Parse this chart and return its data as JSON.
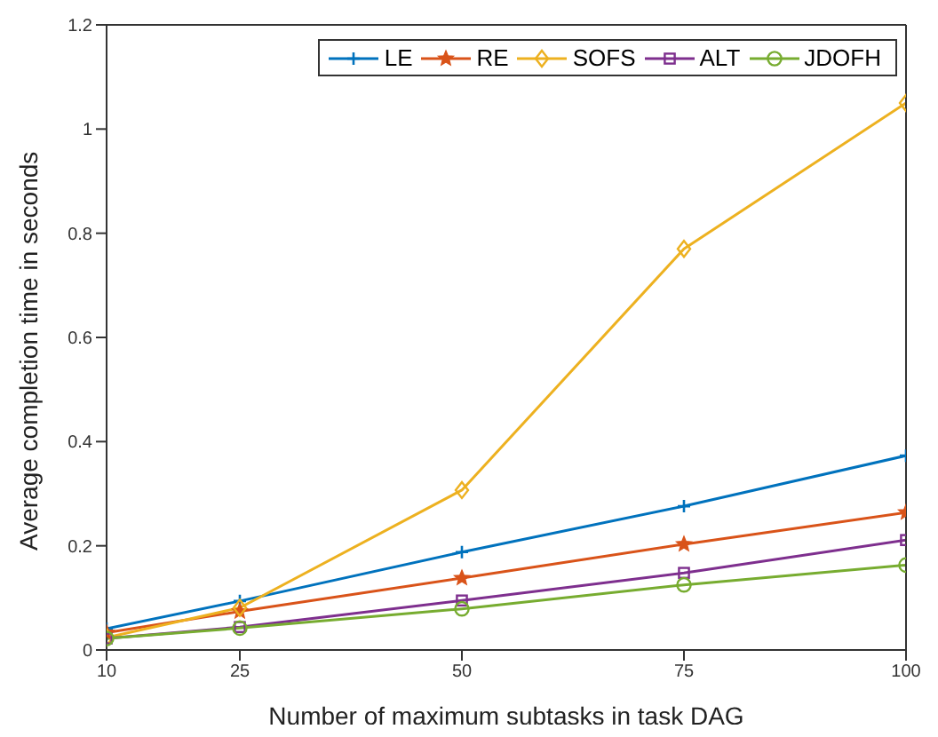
{
  "chart_data": {
    "type": "line",
    "xlabel": "Number of maximum subtasks in task DAG",
    "ylabel": "Average completion time in seconds",
    "x": [
      10,
      25,
      50,
      75,
      100
    ],
    "xlim": [
      10,
      100
    ],
    "xticks": [
      10,
      25,
      50,
      75,
      100
    ],
    "ylim": [
      0,
      1.2
    ],
    "yticks": [
      0,
      0.2,
      0.4,
      0.6,
      0.8,
      1,
      1.2
    ],
    "grid": false,
    "legend": "top right",
    "line_style": "solid",
    "series": [
      {
        "name": "LE",
        "color": "#0072bd",
        "marker": "cross",
        "values": [
          0.041,
          0.094,
          0.188,
          0.276,
          0.373
        ]
      },
      {
        "name": "RE",
        "color": "#d95319",
        "marker": "star",
        "values": [
          0.033,
          0.074,
          0.138,
          0.203,
          0.264
        ]
      },
      {
        "name": "SOFS",
        "color": "#edb120",
        "marker": "diamond",
        "values": [
          0.024,
          0.081,
          0.307,
          0.77,
          1.05
        ]
      },
      {
        "name": "ALT",
        "color": "#7e2f8e",
        "marker": "square",
        "values": [
          0.022,
          0.044,
          0.095,
          0.148,
          0.211
        ]
      },
      {
        "name": "JDOFH",
        "color": "#77ac30",
        "marker": "circle",
        "values": [
          0.022,
          0.042,
          0.079,
          0.125,
          0.163
        ]
      }
    ]
  }
}
